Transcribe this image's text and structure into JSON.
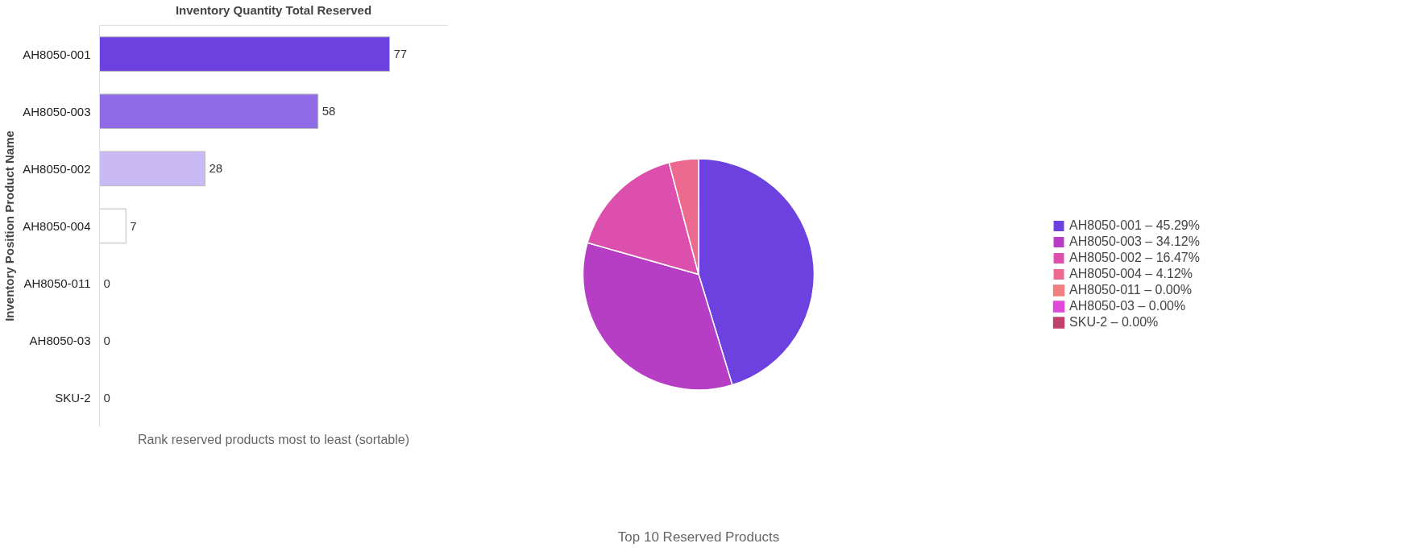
{
  "chart_data": [
    {
      "type": "bar",
      "orientation": "horizontal",
      "xlabel": "Inventory Quantity Total Reserved",
      "ylabel": "Inventory Position Product Name",
      "categories": [
        "AH8050-001",
        "AH8050-003",
        "AH8050-002",
        "AH8050-004",
        "AH8050-011",
        "AH8050-03",
        "SKU-2"
      ],
      "values": [
        77,
        58,
        28,
        7,
        0,
        0,
        0
      ],
      "colors": [
        "#6c41e0",
        "#8f6be8",
        "#c9b9f5",
        "#ffffff",
        "#ffffff",
        "#ffffff",
        "#ffffff"
      ],
      "data_labels": true,
      "tick_labels": "y",
      "grid": false,
      "annotations": [
        "Rank reserved products most to least (sortable)"
      ]
    },
    {
      "type": "pie",
      "title": "Top 10 Reserved Products",
      "categories": [
        "AH8050-001",
        "AH8050-003",
        "AH8050-002",
        "AH8050-004",
        "AH8050-011",
        "AH8050-03",
        "SKU-2"
      ],
      "values": [
        45.29,
        34.12,
        16.47,
        4.12,
        0,
        0,
        0
      ],
      "value_labels": [
        "45.29%",
        "34.12%",
        "16.47%",
        "4.12%",
        "0.00%",
        "0.00%",
        "0.00%"
      ],
      "colors": [
        "#6c41e0",
        "#b53ec4",
        "#dc4fad",
        "#ec6a8f",
        "#f08080",
        "#e04ad8",
        "#c0406e"
      ],
      "legend": "right"
    }
  ]
}
